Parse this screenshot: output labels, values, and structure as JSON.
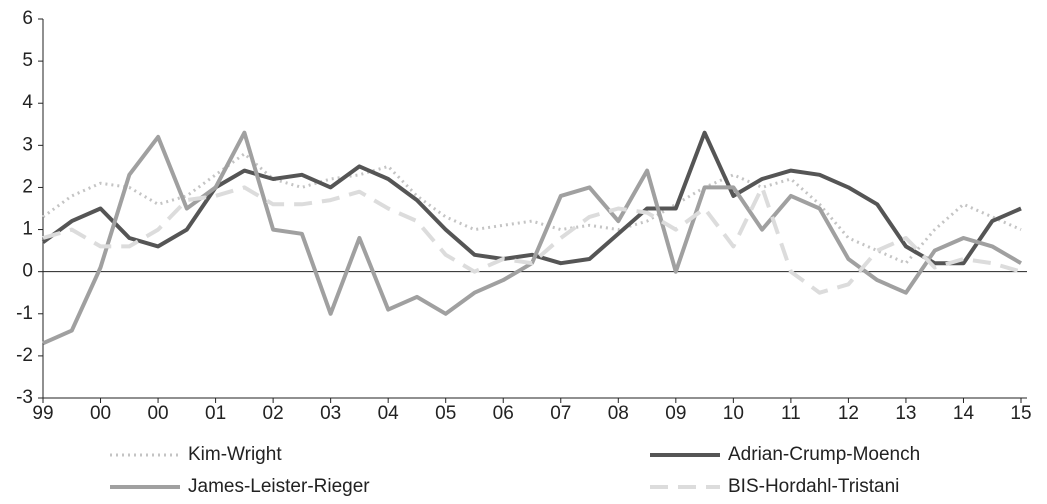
{
  "chart_data": {
    "type": "line",
    "x": [
      0,
      0.5,
      1,
      1.5,
      2,
      2.5,
      3,
      3.5,
      4,
      4.5,
      5,
      5.5,
      6,
      6.5,
      7,
      7.5,
      8,
      8.5,
      9,
      9.5,
      10,
      10.5,
      11,
      11.5,
      12,
      12.5,
      13,
      13.5,
      14,
      14.5,
      15,
      15.5,
      16,
      16.5,
      17
    ],
    "xlim": [
      0,
      17
    ],
    "xticks": [
      {
        "value": 0,
        "label": "99"
      },
      {
        "value": 1,
        "label": "00"
      },
      {
        "value": 2,
        "label": "00"
      },
      {
        "value": 3,
        "label": "01"
      },
      {
        "value": 4,
        "label": "02"
      },
      {
        "value": 5,
        "label": "03"
      },
      {
        "value": 6,
        "label": "04"
      },
      {
        "value": 7,
        "label": "05"
      },
      {
        "value": 8,
        "label": "06"
      },
      {
        "value": 9,
        "label": "07"
      },
      {
        "value": 10,
        "label": "08"
      },
      {
        "value": 11,
        "label": "09"
      },
      {
        "value": 12,
        "label": "10"
      },
      {
        "value": 13,
        "label": "11"
      },
      {
        "value": 14,
        "label": "12"
      },
      {
        "value": 15,
        "label": "13"
      },
      {
        "value": 16,
        "label": "14"
      },
      {
        "value": 17,
        "label": "15"
      }
    ],
    "ylim": [
      -3,
      6
    ],
    "yticks": [
      -3,
      -2,
      -1,
      0,
      1,
      2,
      3,
      4,
      5,
      6
    ],
    "series": [
      {
        "name": "Kim-Wright",
        "color": "#c4c4c4",
        "dash": "dotted",
        "values": [
          1.3,
          1.8,
          2.1,
          2.0,
          1.6,
          1.8,
          2.3,
          2.8,
          2.2,
          2.0,
          2.2,
          2.3,
          2.5,
          1.8,
          1.3,
          1.0,
          1.1,
          1.2,
          1.0,
          1.1,
          1.0,
          1.2,
          1.6,
          2.0,
          2.3,
          2.0,
          2.2,
          1.6,
          0.8,
          0.5,
          0.2,
          1.0,
          1.6,
          1.3,
          1.0
        ]
      },
      {
        "name": "Adrian-Crump-Moench",
        "color": "#555555",
        "dash": "solid",
        "values": [
          0.7,
          1.2,
          1.5,
          0.8,
          0.6,
          1.0,
          2.0,
          2.4,
          2.2,
          2.3,
          2.0,
          2.5,
          2.2,
          1.7,
          1.0,
          0.4,
          0.3,
          0.4,
          0.2,
          0.3,
          0.9,
          1.5,
          1.5,
          3.3,
          1.8,
          2.2,
          2.4,
          2.3,
          2.0,
          1.6,
          0.6,
          0.2,
          0.2,
          1.2,
          1.5
        ]
      },
      {
        "name": "James-Leister-Rieger",
        "color": "#a0a0a0",
        "dash": "thick",
        "values": [
          -1.7,
          -1.4,
          0.1,
          2.3,
          3.2,
          1.5,
          2.0,
          3.3,
          1.0,
          0.9,
          -1.0,
          0.8,
          -0.9,
          -0.6,
          -1.0,
          -0.5,
          -0.2,
          0.2,
          1.8,
          2.0,
          1.2,
          2.4,
          0.0,
          2.0,
          2.0,
          1.0,
          1.8,
          1.5,
          0.3,
          -0.2,
          -0.5,
          0.5,
          0.8,
          0.6,
          0.2
        ]
      },
      {
        "name": "BIS-Hordahl-Tristani",
        "color": "#dcdcdc",
        "dash": "dashed",
        "values": [
          0.8,
          1.0,
          0.6,
          0.6,
          1.0,
          1.7,
          1.8,
          2.0,
          1.6,
          1.6,
          1.7,
          1.9,
          1.5,
          1.2,
          0.4,
          0.0,
          0.3,
          0.2,
          0.8,
          1.3,
          1.5,
          1.4,
          1.0,
          1.5,
          0.6,
          2.0,
          0.0,
          -0.5,
          -0.3,
          0.5,
          0.8,
          0.1,
          0.3,
          0.2,
          0.0
        ]
      }
    ]
  }
}
